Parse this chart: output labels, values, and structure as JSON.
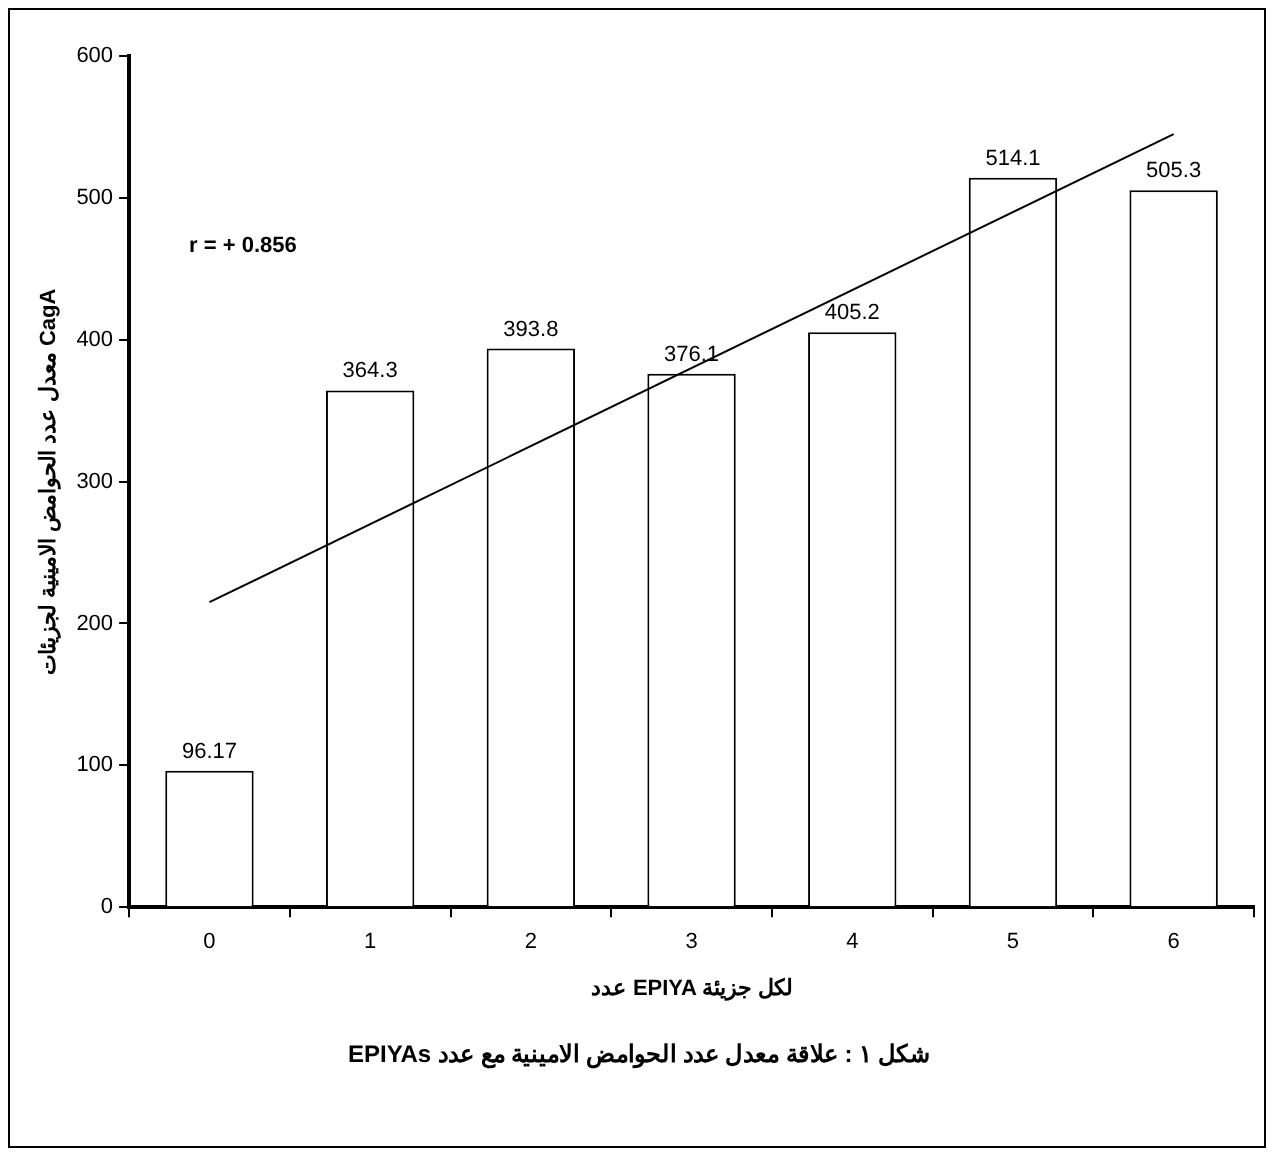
{
  "chart_data": {
    "type": "bar",
    "xlabel": "عدد EPIYA لكل جزيئة",
    "ylabel": "معدل عدد الحوامض الامينية لجزيئات CagA",
    "categories": [
      "0",
      "1",
      "2",
      "3",
      "4",
      "5",
      "6"
    ],
    "series": [
      {
        "color": "#ffffff",
        "values": [
          96.17,
          364.3,
          393.8,
          376.1,
          405.2,
          514.1,
          505.3
        ],
        "value_labels": [
          "96.17",
          "364.3",
          "393.8",
          "376.1",
          "405.2",
          "514.1",
          "505.3"
        ]
      },
      {
        "type": "line",
        "color": "#000000",
        "values": [
          215,
          null,
          null,
          null,
          null,
          null,
          545
        ],
        "marker": "none"
      }
    ],
    "ylim": [
      0,
      600
    ],
    "yticks": [
      0,
      100,
      200,
      300,
      400,
      500,
      600
    ],
    "grid": false,
    "legend": false,
    "annotations": [
      "r = + 0.856",
      "شكل ١ : علاقة معدل عدد الحوامض الامينية مع عدد EPIYAs"
    ]
  }
}
